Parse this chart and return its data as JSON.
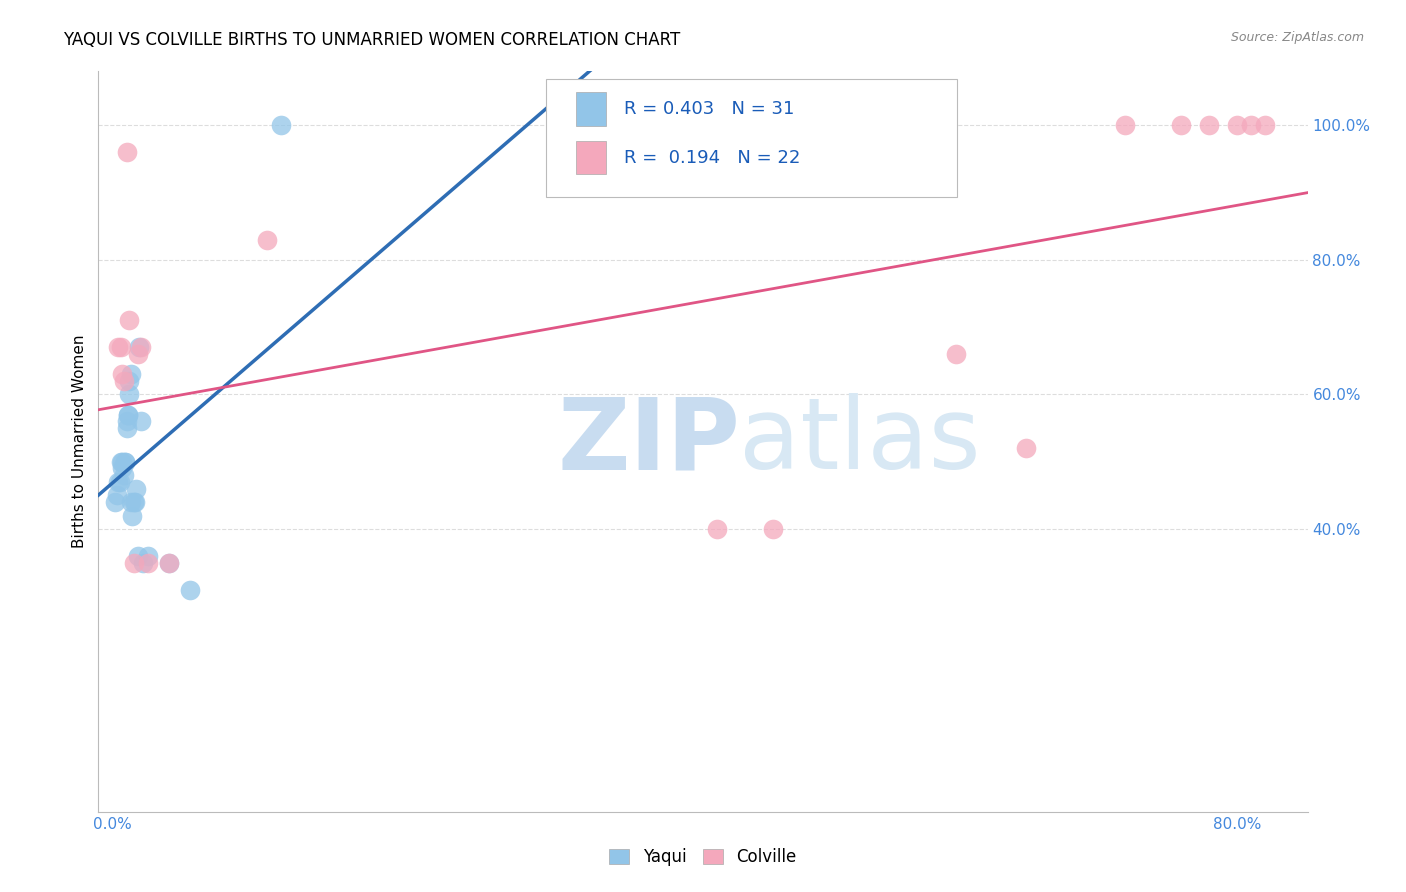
{
  "title": "YAQUI VS COLVILLE BIRTHS TO UNMARRIED WOMEN CORRELATION CHART",
  "source": "Source: ZipAtlas.com",
  "ylabel": "Births to Unmarried Women",
  "yaqui_R": 0.403,
  "yaqui_N": 31,
  "colville_R": 0.194,
  "colville_N": 22,
  "xlim": [
    -0.01,
    0.85
  ],
  "ylim": [
    -0.02,
    1.08
  ],
  "ytick_values": [
    0.4,
    0.6,
    0.8,
    1.0
  ],
  "ytick_labels": [
    "40.0%",
    "60.0%",
    "80.0%",
    "100.0%"
  ],
  "xtick_values": [
    0.0,
    0.1,
    0.2,
    0.3,
    0.4,
    0.5,
    0.6,
    0.7,
    0.8
  ],
  "xtick_labels": [
    "0.0%",
    "",
    "",
    "",
    "",
    "",
    "",
    "",
    "80.0%"
  ],
  "yaqui_color": "#92C5E8",
  "colville_color": "#F4A8BC",
  "yaqui_line_color": "#2E6DB4",
  "colville_line_color": "#E05585",
  "watermark_zip_color": "#C8DCF0",
  "watermark_atlas_color": "#D8E8F4",
  "grid_color": "#DDDDDD",
  "tick_color": "#4488DD",
  "legend_text_color": "#1A5CB8",
  "yaqui_x": [
    0.002,
    0.003,
    0.004,
    0.005,
    0.006,
    0.007,
    0.007,
    0.008,
    0.009,
    0.009,
    0.01,
    0.01,
    0.011,
    0.011,
    0.012,
    0.012,
    0.013,
    0.013,
    0.014,
    0.015,
    0.016,
    0.017,
    0.018,
    0.019,
    0.02,
    0.022,
    0.025,
    0.04,
    0.055,
    0.12,
    0.32
  ],
  "yaqui_y": [
    0.44,
    0.45,
    0.47,
    0.47,
    0.5,
    0.5,
    0.49,
    0.48,
    0.5,
    0.5,
    0.55,
    0.56,
    0.57,
    0.57,
    0.6,
    0.62,
    0.63,
    0.44,
    0.42,
    0.44,
    0.44,
    0.46,
    0.36,
    0.67,
    0.56,
    0.35,
    0.36,
    0.35,
    0.31,
    1.0,
    1.0
  ],
  "colville_x": [
    0.004,
    0.006,
    0.007,
    0.008,
    0.01,
    0.012,
    0.015,
    0.018,
    0.02,
    0.025,
    0.04,
    0.11,
    0.43,
    0.47,
    0.6,
    0.65,
    0.72,
    0.76,
    0.78,
    0.8,
    0.81,
    0.82
  ],
  "colville_y": [
    0.67,
    0.67,
    0.63,
    0.62,
    0.96,
    0.71,
    0.35,
    0.66,
    0.67,
    0.35,
    0.35,
    0.83,
    0.4,
    0.4,
    0.66,
    0.52,
    1.0,
    1.0,
    1.0,
    1.0,
    1.0,
    1.0
  ]
}
